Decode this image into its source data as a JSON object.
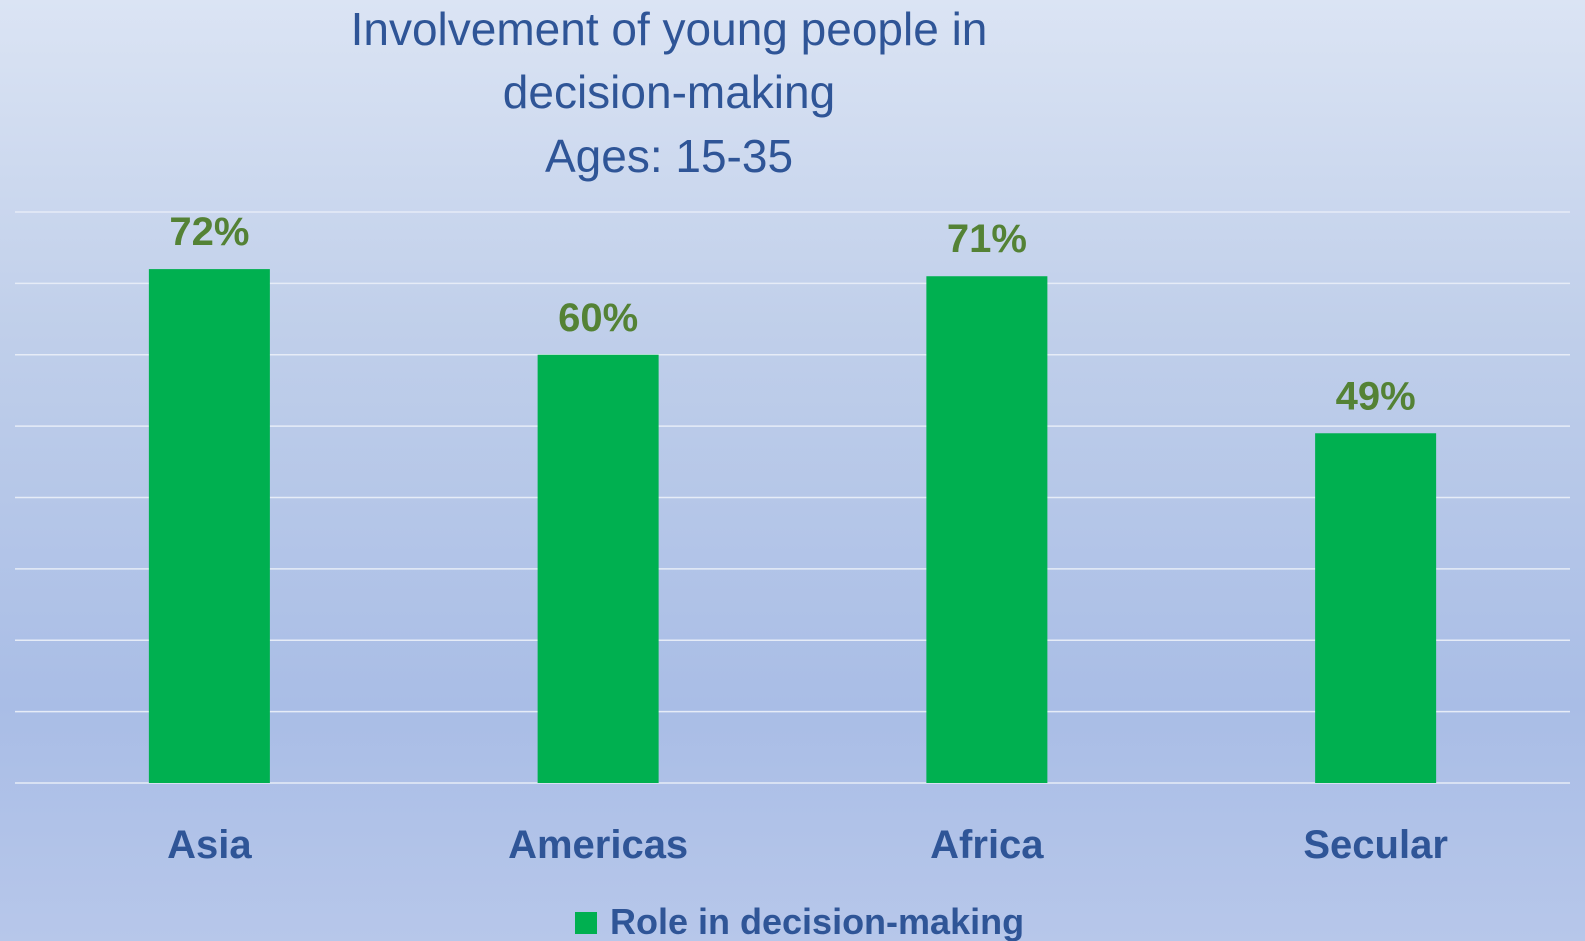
{
  "chart_data": {
    "type": "bar",
    "title": "Involvement of young people in decision-making",
    "title_lines": [
      "Involvement of young people in",
      "decision-making",
      "Ages: 15-35"
    ],
    "categories": [
      "Asia",
      "Americas",
      "Africa",
      "Secular"
    ],
    "series": [
      {
        "name": "Role in decision-making",
        "values": [
          72,
          60,
          71,
          49
        ],
        "labels": [
          "72%",
          "60%",
          "71%",
          "49%"
        ],
        "color": "#00b050"
      }
    ],
    "ylim": [
      0,
      80
    ],
    "grid": true,
    "legend_position": "bottom",
    "colors": {
      "title": "#2f5597",
      "category_text": "#2f5597",
      "data_label": "#548235",
      "gridline": "#e6ecf7"
    }
  }
}
